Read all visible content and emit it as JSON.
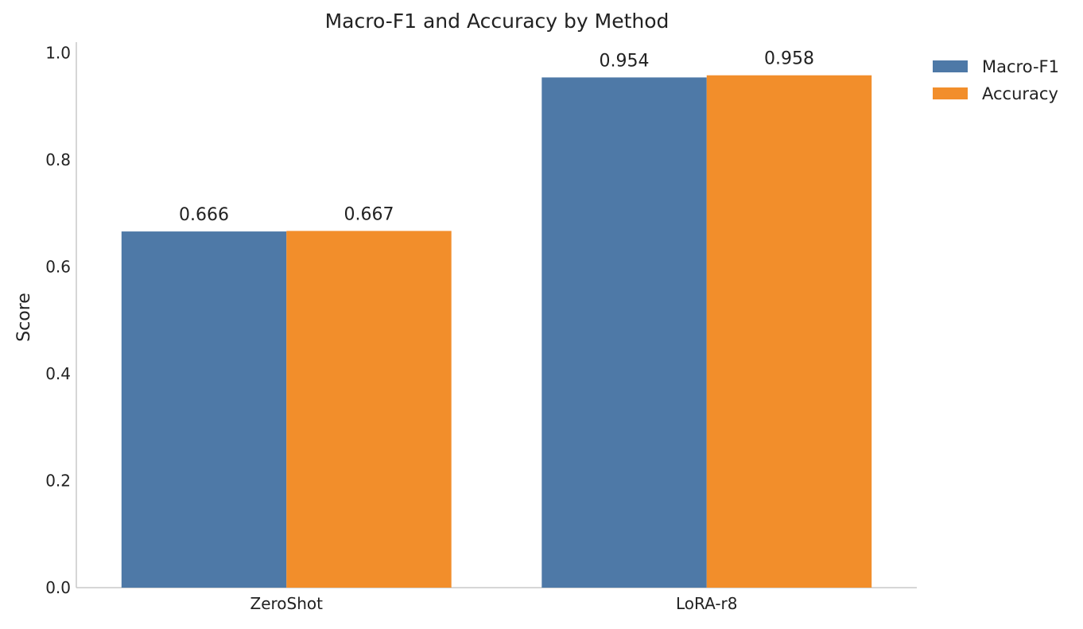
{
  "chart_data": {
    "type": "bar",
    "title": "Macro-F1 and Accuracy by Method",
    "xlabel": "",
    "ylabel": "Score",
    "categories": [
      "ZeroShot",
      "LoRA-r8"
    ],
    "series": [
      {
        "name": "Macro-F1",
        "values": [
          0.666,
          0.954
        ],
        "labels": [
          "0.666",
          "0.954"
        ],
        "color": "#4e79a7"
      },
      {
        "name": "Accuracy",
        "values": [
          0.667,
          0.958
        ],
        "labels": [
          "0.667",
          "0.958"
        ],
        "color": "#f28e2b"
      }
    ],
    "ylim": [
      0,
      1.02
    ],
    "yticks": [
      0.0,
      0.2,
      0.4,
      0.6,
      0.8,
      1.0
    ],
    "ytick_labels": [
      "0.0",
      "0.2",
      "0.4",
      "0.6",
      "0.8",
      "1.0"
    ],
    "grid": false,
    "legend_position": "top-right, outside plot area"
  }
}
